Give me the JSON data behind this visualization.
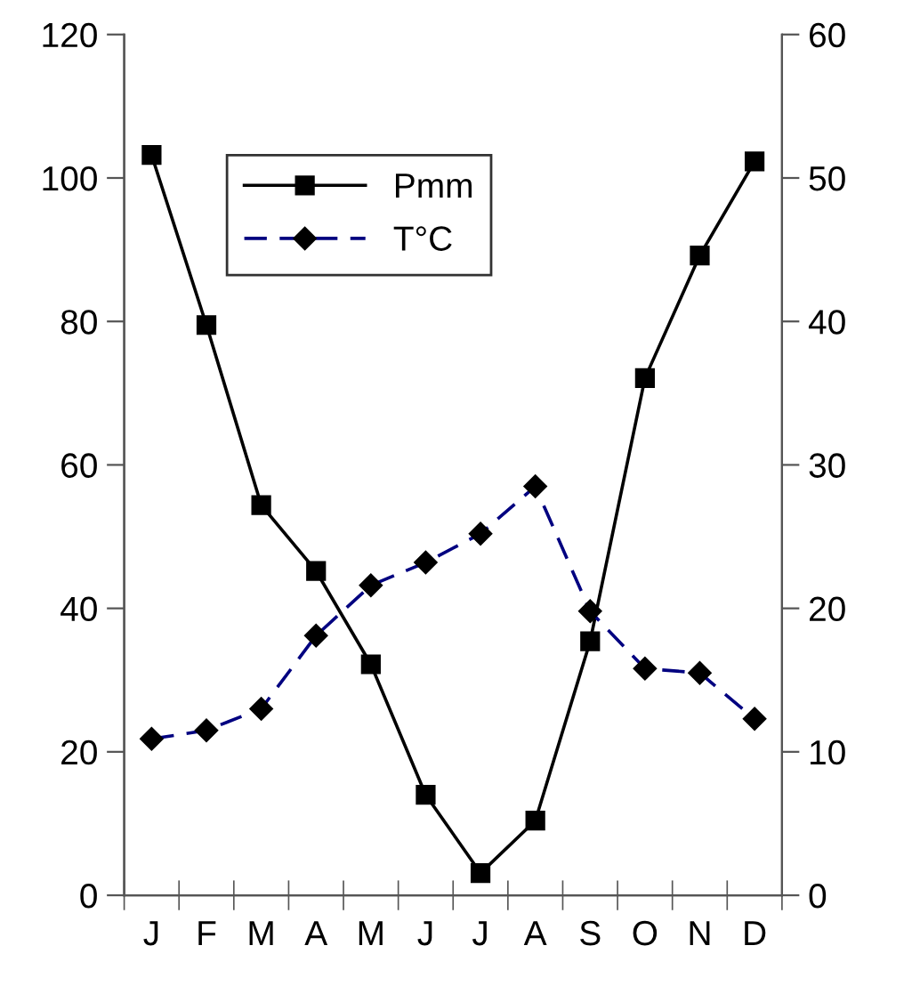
{
  "chart_data": {
    "type": "line",
    "categories": [
      "J",
      "F",
      "M",
      "A",
      "M",
      "J",
      "J",
      "A",
      "S",
      "O",
      "N",
      "D"
    ],
    "series": [
      {
        "name": "Pmm",
        "color": "#000000",
        "marker": "square",
        "line_style": "solid",
        "values": [
          103.2,
          79.5,
          54.4,
          45.2,
          32.2,
          14.0,
          3.1,
          10.4,
          35.4,
          72.1,
          89.2,
          102.3
        ]
      },
      {
        "name": "T°C",
        "color": "#000080",
        "marker": "diamond",
        "line_style": "dashed",
        "axis": "y2",
        "values": [
          10.9,
          11.5,
          13.0,
          18.1,
          21.6,
          23.2,
          25.2,
          28.5,
          19.8,
          15.8,
          15.5,
          12.3
        ]
      }
    ],
    "ylim": [
      0,
      120
    ],
    "yticks": [
      0,
      20,
      40,
      60,
      80,
      100,
      120
    ],
    "y2lim": [
      0,
      60
    ],
    "y2ticks": [
      0,
      10,
      20,
      30,
      40,
      50,
      60
    ],
    "grid": false,
    "legend": "top left"
  }
}
